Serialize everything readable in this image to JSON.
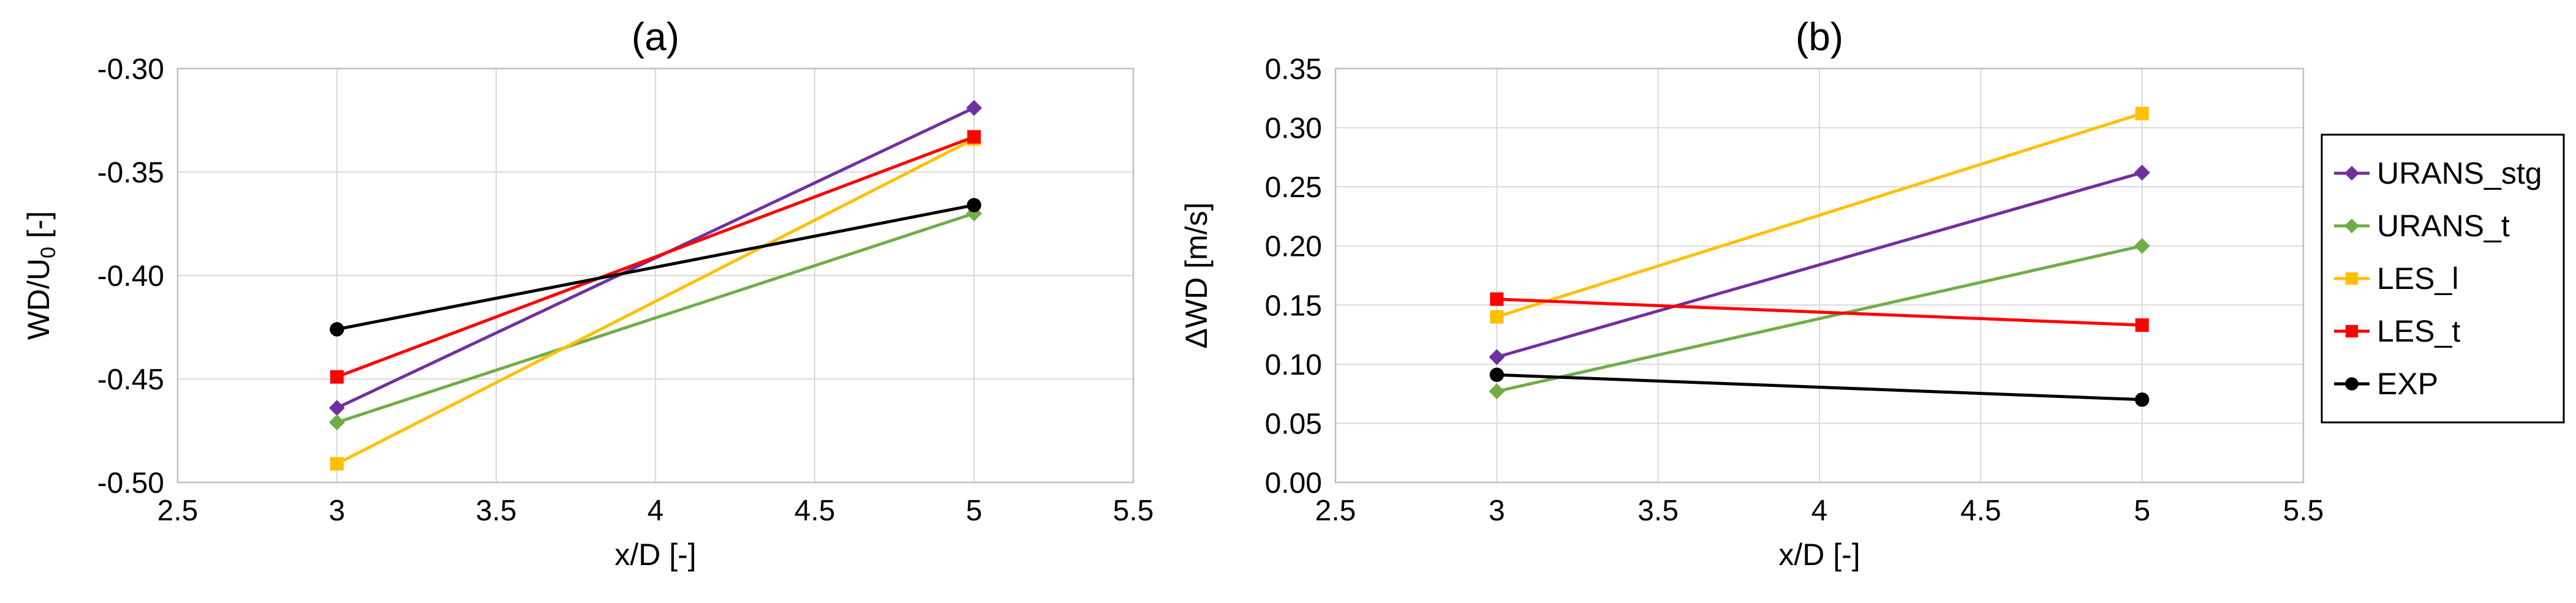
{
  "chart_data": [
    {
      "type": "line",
      "title": "(a)",
      "xlabel": "x/D  [-]",
      "ylabel_base": "WD/U",
      "ylabel_sub": "0",
      "ylabel_suffix": " [-]",
      "xlim": [
        2.5,
        5.5
      ],
      "ylim": [
        -0.5,
        -0.3
      ],
      "xticks": [
        2.5,
        3,
        3.5,
        4,
        4.5,
        5,
        5.5
      ],
      "xtick_labels": [
        "2.5",
        "3",
        "3.5",
        "4",
        "4.5",
        "5",
        "5.5"
      ],
      "yticks": [
        -0.5,
        -0.45,
        -0.4,
        -0.35,
        -0.3
      ],
      "ytick_labels": [
        "-0.50",
        "-0.45",
        "-0.40",
        "-0.35",
        "-0.30"
      ],
      "grid": true,
      "series": [
        {
          "name": "URANS_stg",
          "color": "#7030a0",
          "marker": "diamond",
          "x": [
            3,
            5
          ],
          "y": [
            -0.464,
            -0.319
          ]
        },
        {
          "name": "URANS_t",
          "color": "#70ad47",
          "marker": "diamond",
          "x": [
            3,
            5
          ],
          "y": [
            -0.471,
            -0.37
          ]
        },
        {
          "name": "LES_l",
          "color": "#ffc000",
          "marker": "square",
          "x": [
            3,
            5
          ],
          "y": [
            -0.491,
            -0.334
          ]
        },
        {
          "name": "LES_t",
          "color": "#ff0000",
          "marker": "square",
          "x": [
            3,
            5
          ],
          "y": [
            -0.449,
            -0.333
          ]
        },
        {
          "name": "EXP",
          "color": "#000000",
          "marker": "circle",
          "x": [
            3,
            5
          ],
          "y": [
            -0.426,
            -0.366
          ]
        }
      ]
    },
    {
      "type": "line",
      "title": "(b)",
      "xlabel": "x/D  [-]",
      "ylabel_base": "ΔWD [m/s]",
      "ylabel_sub": "",
      "ylabel_suffix": "",
      "xlim": [
        2.5,
        5.5
      ],
      "ylim": [
        0,
        0.35
      ],
      "xticks": [
        2.5,
        3,
        3.5,
        4,
        4.5,
        5,
        5.5
      ],
      "xtick_labels": [
        "2.5",
        "3",
        "3.5",
        "4",
        "4.5",
        "5",
        "5.5"
      ],
      "yticks": [
        0,
        0.05,
        0.1,
        0.15,
        0.2,
        0.25,
        0.3,
        0.35
      ],
      "ytick_labels": [
        "0.00",
        "0.05",
        "0.10",
        "0.15",
        "0.20",
        "0.25",
        "0.30",
        "0.35"
      ],
      "grid": true,
      "series": [
        {
          "name": "URANS_stg",
          "color": "#7030a0",
          "marker": "diamond",
          "x": [
            3,
            5
          ],
          "y": [
            0.106,
            0.262
          ]
        },
        {
          "name": "URANS_t",
          "color": "#70ad47",
          "marker": "diamond",
          "x": [
            3,
            5
          ],
          "y": [
            0.077,
            0.2
          ]
        },
        {
          "name": "LES_l",
          "color": "#ffc000",
          "marker": "square",
          "x": [
            3,
            5
          ],
          "y": [
            0.14,
            0.312
          ]
        },
        {
          "name": "LES_t",
          "color": "#ff0000",
          "marker": "square",
          "x": [
            3,
            5
          ],
          "y": [
            0.155,
            0.133
          ]
        },
        {
          "name": "EXP",
          "color": "#000000",
          "marker": "circle",
          "x": [
            3,
            5
          ],
          "y": [
            0.091,
            0.07
          ]
        }
      ]
    }
  ],
  "legend": {
    "placement": "right",
    "entries": [
      {
        "label": "URANS_stg",
        "color": "#7030a0",
        "marker": "diamond"
      },
      {
        "label": "URANS_t",
        "color": "#70ad47",
        "marker": "diamond"
      },
      {
        "label": "LES_l",
        "color": "#ffc000",
        "marker": "square"
      },
      {
        "label": "LES_t",
        "color": "#ff0000",
        "marker": "square"
      },
      {
        "label": "EXP",
        "color": "#000000",
        "marker": "circle"
      }
    ]
  }
}
